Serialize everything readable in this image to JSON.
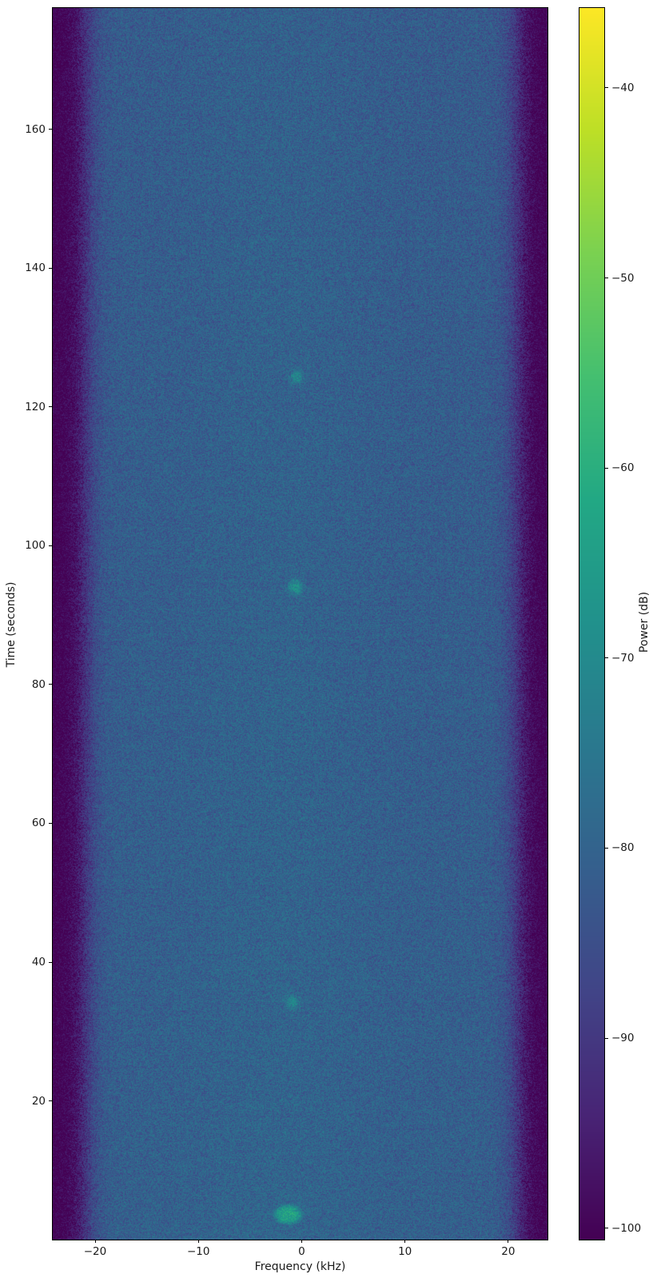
{
  "figure": {
    "background_color": "#ffffff",
    "text_color": "#1a1a1a"
  },
  "chart_data": {
    "type": "heatmap",
    "subtype": "spectrogram",
    "title": "",
    "xlabel": "Frequency (kHz)",
    "ylabel": "Time (seconds)",
    "colorbar_label": "Power (dB)",
    "grid": false,
    "xlim_khz": [
      -24.1,
      23.8
    ],
    "ylim_s": [
      0,
      177.5
    ],
    "x_ticks_khz": [
      -20,
      -10,
      0,
      10,
      20
    ],
    "x_tick_labels": [
      "−20",
      "−10",
      "0",
      "10",
      "20"
    ],
    "y_ticks_s": [
      20,
      40,
      60,
      80,
      100,
      120,
      140,
      160
    ],
    "y_tick_labels": [
      "20",
      "40",
      "60",
      "80",
      "100",
      "120",
      "140",
      "160"
    ],
    "colorbar_ticks_db": [
      -40,
      -50,
      -60,
      -70,
      -80,
      -90,
      -100
    ],
    "colorbar_tick_labels": [
      "−40",
      "−50",
      "−60",
      "−70",
      "−80",
      "−90",
      "−100"
    ],
    "color_scale": {
      "name": "viridis",
      "vmin_db": -100.6,
      "vmax_db": -35.8,
      "stops": [
        "#440154",
        "#482475",
        "#414487",
        "#355f8d",
        "#2a788e",
        "#21918c",
        "#22a884",
        "#44bf70",
        "#7ad151",
        "#bddf26",
        "#fde725"
      ]
    },
    "background_model": {
      "noise_floor_db": -79,
      "passband_half_width_khz": 21.0,
      "edge_rolloff_khz": 0.75,
      "stopband_db": -100.5,
      "center_bump_db": 1.2,
      "center_bump_freq_khz": -2.5,
      "center_bump_width_khz": 9,
      "time_tilt_db": 1.1,
      "speckle_db": 0.85,
      "row_stripe_db": 1.0,
      "seed": 1337
    },
    "events": [
      {
        "time_s": 3.6,
        "freq_khz": -1.3,
        "peak_db": -62,
        "freq_width_khz": 1.05,
        "time_width_s": 1.1,
        "flatness": 2
      },
      {
        "time_s": 34.2,
        "freq_khz": -0.9,
        "peak_db": -70,
        "freq_width_khz": 0.55,
        "time_width_s": 0.8,
        "flatness": 1
      },
      {
        "time_s": 94.0,
        "freq_khz": -0.6,
        "peak_db": -67,
        "freq_width_khz": 0.5,
        "time_width_s": 0.8,
        "flatness": 1
      },
      {
        "time_s": 124.3,
        "freq_khz": -0.5,
        "peak_db": -69,
        "freq_width_khz": 0.45,
        "time_width_s": 0.7,
        "flatness": 1
      }
    ]
  }
}
